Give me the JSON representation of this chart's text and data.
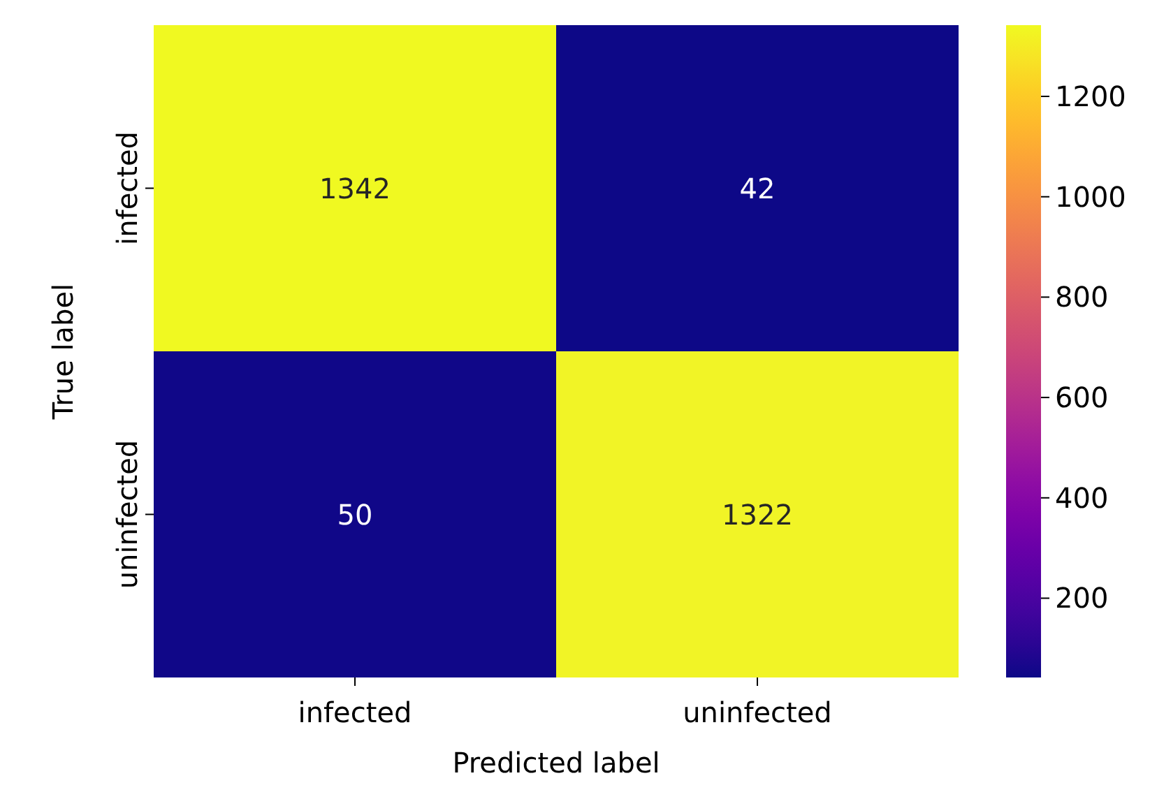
{
  "chart_data": {
    "type": "heatmap",
    "xlabel": "Predicted label",
    "ylabel": "True label",
    "categories": [
      "infected",
      "uninfected"
    ],
    "y_categories": [
      "infected",
      "uninfected"
    ],
    "cells": [
      [
        1342,
        42
      ],
      [
        50,
        1322
      ]
    ],
    "data_labels": true,
    "clim": [
      42,
      1342
    ],
    "cticks": [
      200,
      400,
      600,
      800,
      1000,
      1200
    ]
  }
}
